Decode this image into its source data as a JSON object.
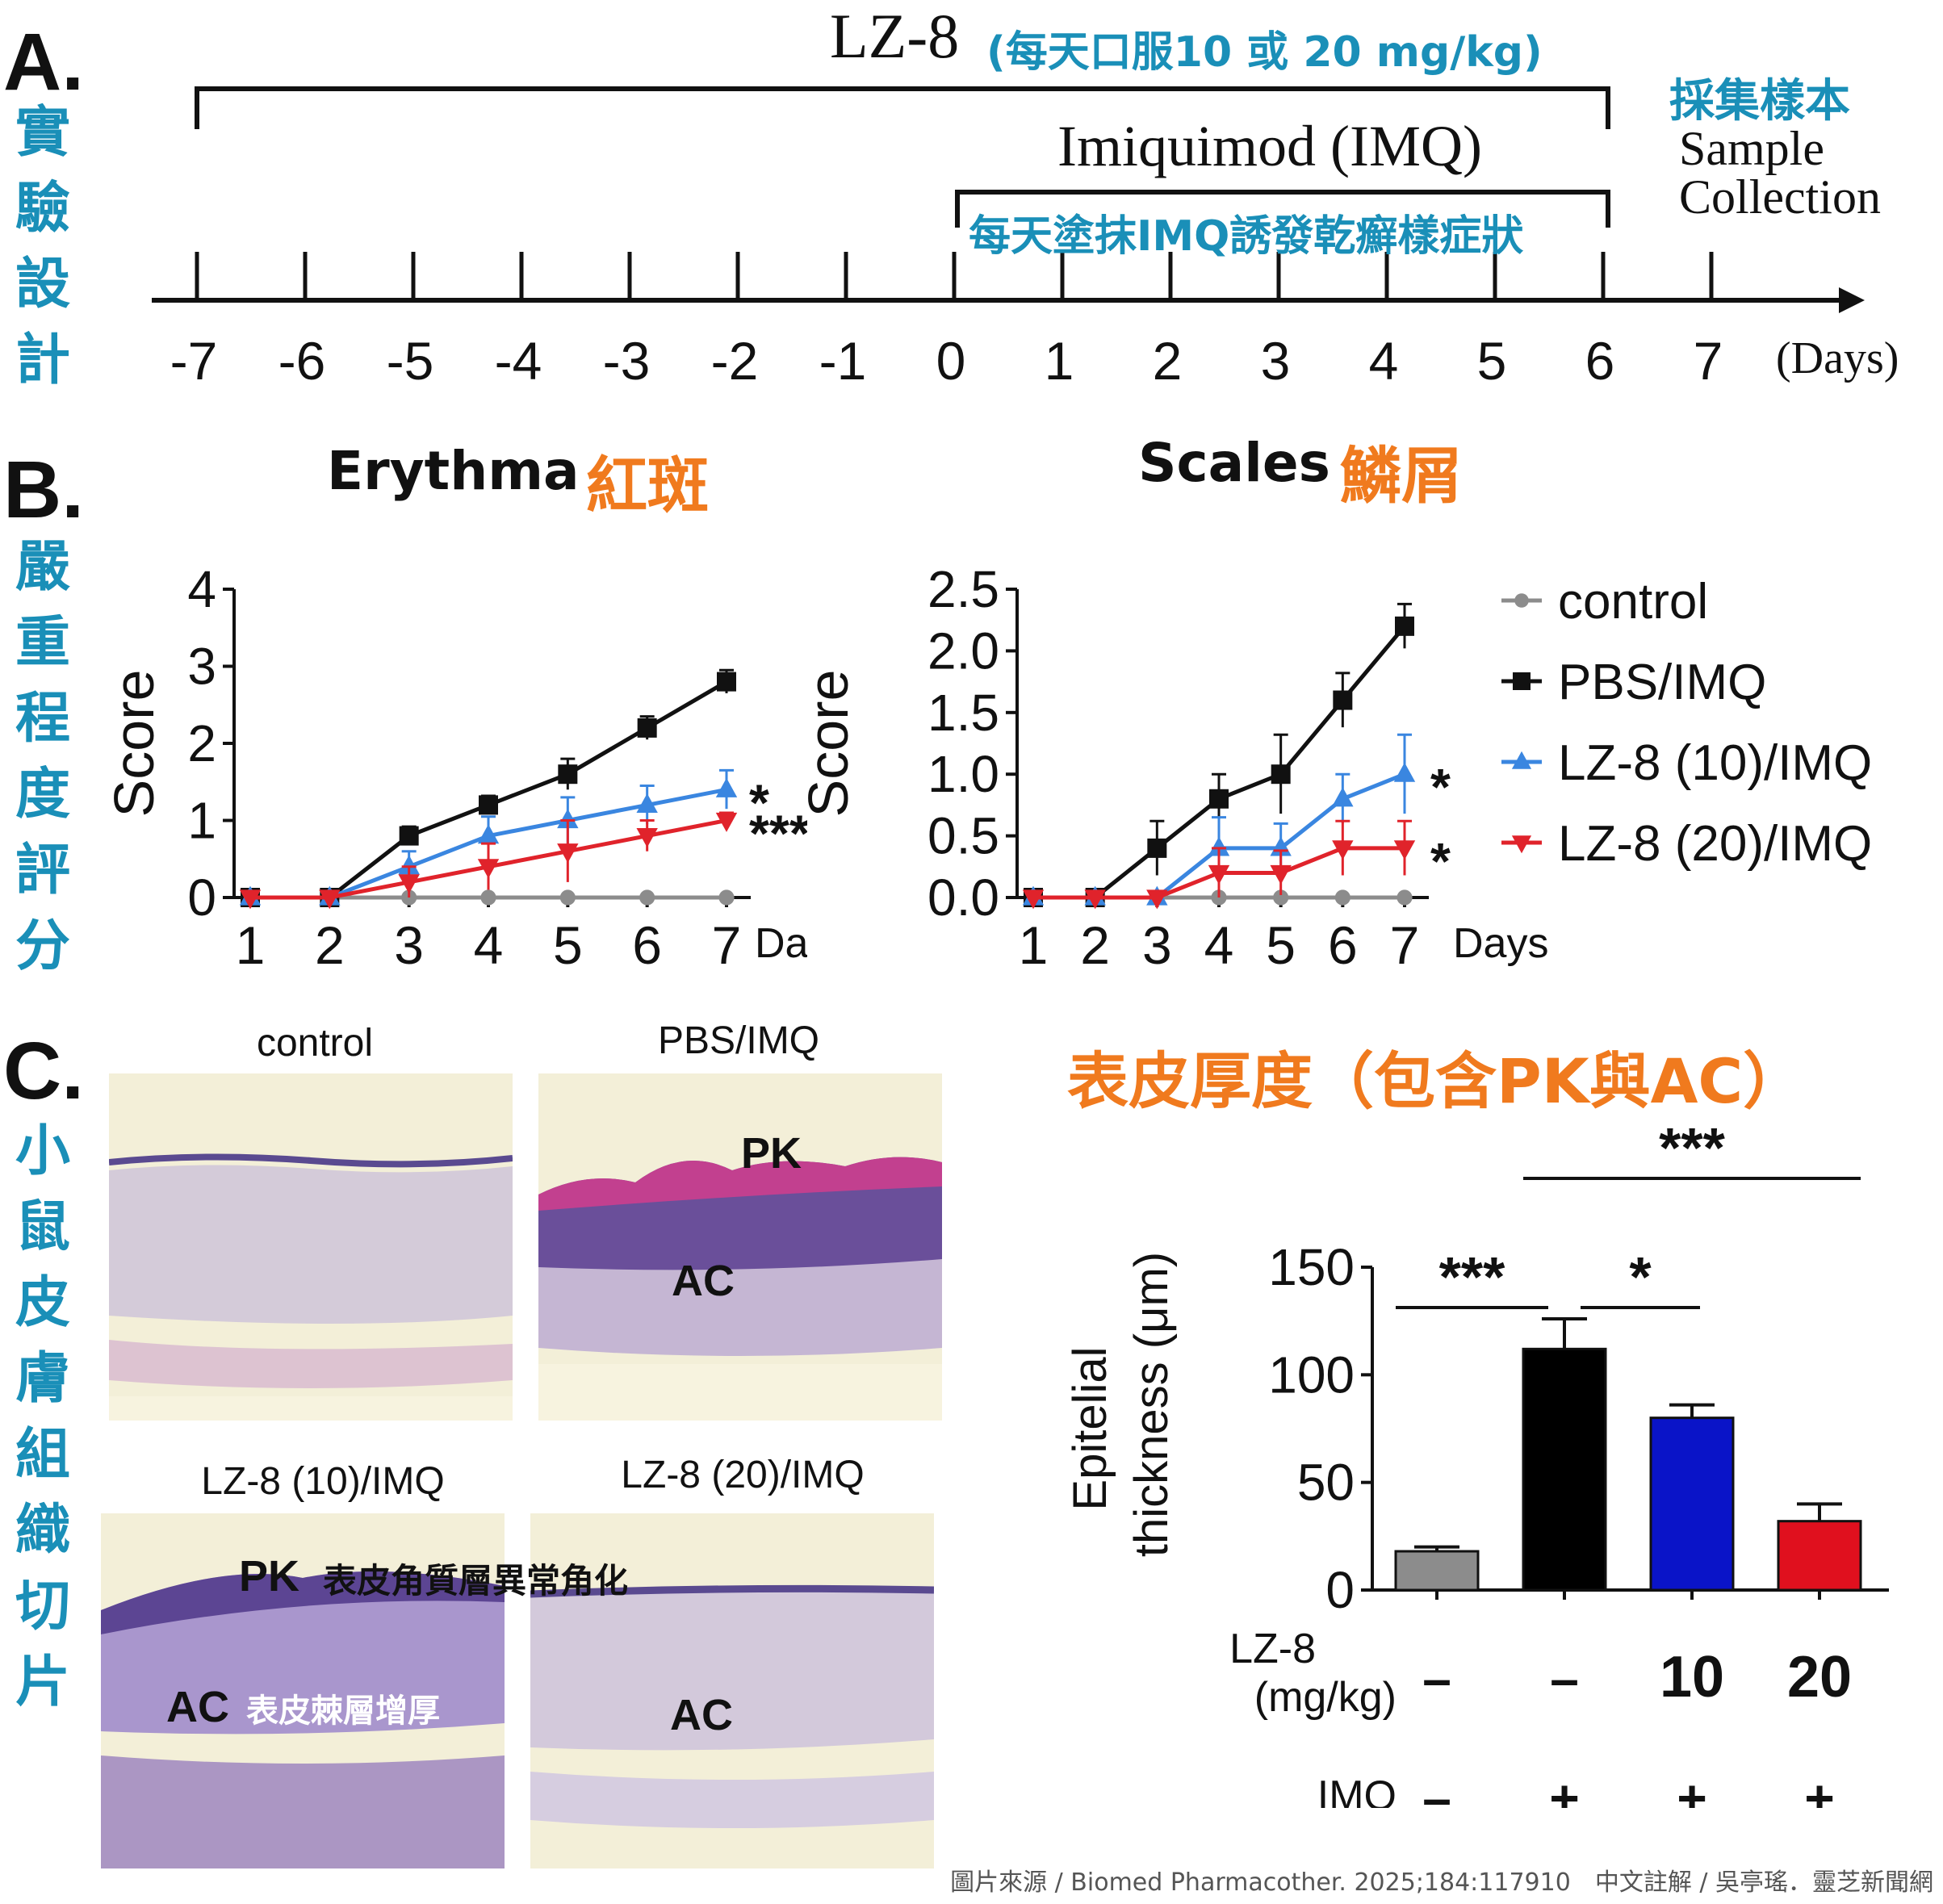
{
  "panel_a": {
    "letter": "A.",
    "side_label": [
      "實",
      "驗",
      "設",
      "計"
    ],
    "lz8_label": "LZ-8",
    "lz8_note": "(每天口服10 或 20 mg/kg)",
    "imq_label": "Imiquimod (IMQ)",
    "imq_note": "每天塗抹IMQ誘發乾癬樣症狀",
    "collect_cn": "採集樣本",
    "collect_en_1": "Sample",
    "collect_en_2": "Collection",
    "days": [
      "-7",
      "-6",
      "-5",
      "-4",
      "-3",
      "-2",
      "-1",
      "0",
      "1",
      "2",
      "3",
      "4",
      "5",
      "6",
      "7"
    ],
    "days_unit": "(Days)"
  },
  "panel_b": {
    "letter": "B.",
    "side_label": [
      "嚴",
      "重",
      "程",
      "度",
      "評",
      "分"
    ],
    "erythema_title_en": "Erythma",
    "erythema_title_cn": "紅斑",
    "scales_title_en": "Scales",
    "scales_title_cn": "鱗屑",
    "legend": [
      "control",
      "PBS/IMQ",
      "LZ-8 (10)/IMQ",
      "LZ-8 (20)/IMQ"
    ]
  },
  "panel_c": {
    "letter": "C.",
    "side_label": [
      "小",
      "鼠",
      "皮",
      "膚",
      "組",
      "織",
      "切",
      "片"
    ],
    "histo_labels": [
      "control",
      "PBS/IMQ",
      "LZ-8 (10)/IMQ",
      "LZ-8 (20)/IMQ"
    ],
    "pk": "PK",
    "ac": "AC",
    "pk_note": "表皮角質層異常角化",
    "ac_note": "表皮棘層增厚",
    "bar_title": "表皮厚度（包含PK與AC）"
  },
  "chart_data": [
    {
      "type": "line",
      "title": "Erythma 紅斑",
      "xlabel": "Days",
      "ylabel": "Score",
      "x": [
        1,
        2,
        3,
        4,
        5,
        6,
        7
      ],
      "ylim": [
        0,
        4
      ],
      "yticks": [
        "0",
        "1",
        "2",
        "3",
        "4"
      ],
      "series": [
        {
          "name": "control",
          "color": "#8c8c8c",
          "marker": "circle",
          "values": [
            0,
            0,
            0,
            0,
            0,
            0,
            0
          ],
          "err": [
            0,
            0,
            0,
            0,
            0,
            0,
            0
          ]
        },
        {
          "name": "PBS/IMQ",
          "color": "#111111",
          "marker": "square",
          "values": [
            0,
            0,
            0.8,
            1.2,
            1.6,
            2.2,
            2.8
          ],
          "err": [
            0,
            0,
            0.12,
            0.12,
            0.2,
            0.15,
            0.15
          ]
        },
        {
          "name": "LZ-8 (10)/IMQ",
          "color": "#3a86e0",
          "marker": "triangle",
          "values": [
            0,
            0,
            0.4,
            0.8,
            1.0,
            1.2,
            1.4
          ],
          "err": [
            0,
            0,
            0.2,
            0.25,
            0.3,
            0.25,
            0.25
          ]
        },
        {
          "name": "LZ-8 (20)/IMQ",
          "color": "#e0232b",
          "marker": "invtriangle",
          "values": [
            0,
            0,
            0.2,
            0.4,
            0.6,
            0.8,
            1.0
          ],
          "err": [
            0,
            0,
            0.2,
            0.3,
            0.4,
            0.2,
            0.1
          ]
        }
      ],
      "significance": [
        {
          "series": "LZ-8 (10)/IMQ",
          "label": "*"
        },
        {
          "series": "LZ-8 (20)/IMQ",
          "label": "***"
        }
      ]
    },
    {
      "type": "line",
      "title": "Scales 鱗屑",
      "xlabel": "Days",
      "ylabel": "Score",
      "x": [
        1,
        2,
        3,
        4,
        5,
        6,
        7
      ],
      "ylim": [
        0,
        2.5
      ],
      "yticks": [
        "0.0",
        "0.5",
        "1.0",
        "1.5",
        "2.0",
        "2.5"
      ],
      "series": [
        {
          "name": "control",
          "color": "#8c8c8c",
          "marker": "circle",
          "values": [
            0,
            0,
            0,
            0,
            0,
            0,
            0
          ],
          "err": [
            0,
            0,
            0,
            0,
            0,
            0,
            0
          ]
        },
        {
          "name": "PBS/IMQ",
          "color": "#111111",
          "marker": "square",
          "values": [
            0,
            0,
            0.4,
            0.8,
            1.0,
            1.6,
            2.2
          ],
          "err": [
            0,
            0,
            0.22,
            0.2,
            0.32,
            0.22,
            0.18
          ]
        },
        {
          "name": "LZ-8 (10)/IMQ",
          "color": "#3a86e0",
          "marker": "triangle",
          "values": [
            0,
            0,
            0,
            0.4,
            0.4,
            0.8,
            1.0
          ],
          "err": [
            0,
            0,
            0,
            0.25,
            0.2,
            0.2,
            0.32
          ]
        },
        {
          "name": "LZ-8 (20)/IMQ",
          "color": "#e0232b",
          "marker": "invtriangle",
          "values": [
            0,
            0,
            0,
            0.2,
            0.2,
            0.4,
            0.4
          ],
          "err": [
            0,
            0,
            0,
            0.2,
            0.18,
            0.22,
            0.22
          ]
        }
      ],
      "significance": [
        {
          "series": "LZ-8 (10)/IMQ",
          "label": "*"
        },
        {
          "series": "LZ-8 (20)/IMQ",
          "label": "*"
        }
      ]
    },
    {
      "type": "bar",
      "title": "表皮厚度（包含PK與AC）",
      "ylabel_1": "Epitelial",
      "ylabel_2": "thickness (μm)",
      "ylim": [
        0,
        150
      ],
      "yticks": [
        "0",
        "50",
        "100",
        "150"
      ],
      "categories": [
        "control",
        "PBS/IMQ",
        "LZ-8 (10)/IMQ",
        "LZ-8 (20)/IMQ"
      ],
      "values": [
        18,
        112,
        80,
        32
      ],
      "err": [
        2,
        14,
        6,
        8
      ],
      "colors": [
        "#8c8c8c",
        "#000000",
        "#0a14c8",
        "#e0101e"
      ],
      "lz8_row_label_1": "LZ-8",
      "lz8_row_label_2": "(mg/kg)",
      "lz8_row": [
        "–",
        "–",
        "10",
        "20"
      ],
      "imq_row_label": "IMQ",
      "imq_row": [
        "–",
        "+",
        "+",
        "+"
      ],
      "significance": [
        {
          "from": 0,
          "to": 1,
          "label": "***"
        },
        {
          "from": 1,
          "to": 2,
          "label": "*"
        },
        {
          "from": 1,
          "to": 3,
          "label": "***"
        }
      ]
    }
  ],
  "source": "圖片來源 / Biomed Pharmacother. 2025;184:117910　中文註解 / 吳亭瑤．靈芝新聞網"
}
